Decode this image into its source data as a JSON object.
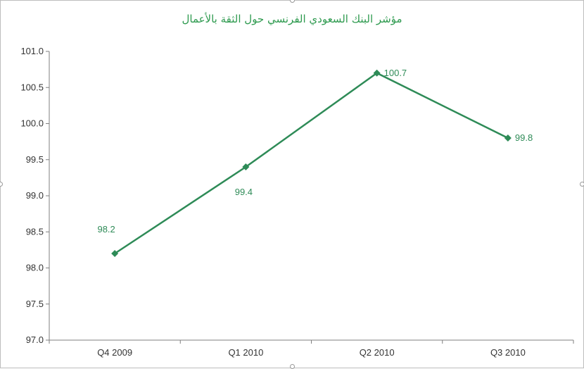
{
  "chart_data": {
    "type": "line",
    "title": "مؤشر البنك السعودي الفرنسي حول الثقة بالأعمال",
    "xlabel": "",
    "ylabel": "",
    "categories": [
      "Q4 2009",
      "Q1 2010",
      "Q2 2010",
      "Q3 2010"
    ],
    "series": [
      {
        "values": [
          98.2,
          99.4,
          100.7,
          99.8
        ],
        "labels": [
          "98.2",
          "99.4",
          "100.7",
          "99.8"
        ]
      }
    ],
    "ylim": [
      97.0,
      101.0
    ],
    "yticks": [
      "97.0",
      "97.5",
      "98.0",
      "98.5",
      "99.0",
      "99.5",
      "100.0",
      "100.5",
      "101.0"
    ],
    "grid": false,
    "legend": "none",
    "line_color": "#2e8b57"
  }
}
